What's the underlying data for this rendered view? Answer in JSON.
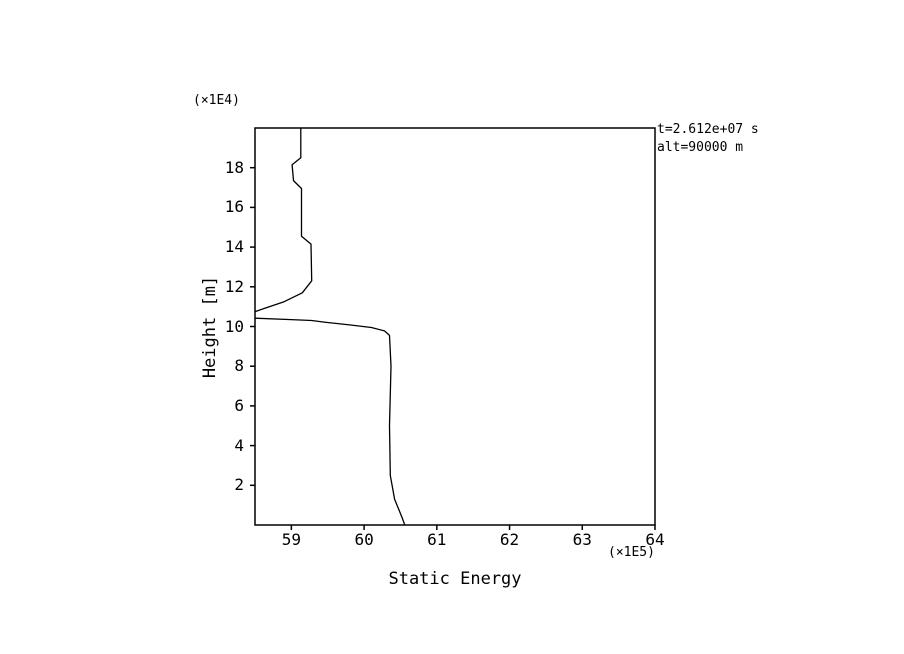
{
  "chart_data": {
    "type": "line",
    "title": "",
    "xlabel": "Static Energy",
    "ylabel": "Height [m]",
    "x_scale_label": "(×1E5)",
    "y_scale_label": "(×1E4)",
    "annotations": {
      "time": "t=2.612e+07 s",
      "altitude": "alt=90000 m"
    },
    "xlim": [
      58.5,
      64
    ],
    "ylim": [
      0,
      20
    ],
    "x_ticks": [
      59,
      60,
      61,
      62,
      63,
      64
    ],
    "y_ticks": [
      2,
      4,
      6,
      8,
      10,
      12,
      14,
      16,
      18
    ],
    "grid": false,
    "legend": "none",
    "line_color": "#000000",
    "background_color": "#ffffff",
    "series": [
      {
        "name": "static-energy-profile",
        "x_units": "x1E5",
        "y_units": "x1E4",
        "points": [
          [
            59.13,
            20.0
          ],
          [
            59.13,
            18.5
          ],
          [
            59.01,
            18.15
          ],
          [
            59.03,
            17.35
          ],
          [
            59.14,
            16.95
          ],
          [
            59.14,
            14.55
          ],
          [
            59.27,
            14.15
          ],
          [
            59.28,
            12.3
          ],
          [
            59.15,
            11.7
          ],
          [
            58.9,
            11.25
          ],
          [
            58.62,
            10.9
          ],
          [
            58.48,
            10.72
          ],
          [
            58.44,
            10.5
          ],
          [
            58.5,
            10.42
          ],
          [
            59.0,
            10.35
          ],
          [
            59.28,
            10.3
          ],
          [
            59.45,
            10.22
          ],
          [
            59.8,
            10.08
          ],
          [
            60.1,
            9.95
          ],
          [
            60.28,
            9.78
          ],
          [
            60.35,
            9.55
          ],
          [
            60.37,
            8.0
          ],
          [
            60.35,
            5.0
          ],
          [
            60.36,
            2.5
          ],
          [
            60.42,
            1.3
          ],
          [
            60.52,
            0.4
          ],
          [
            60.56,
            0.0
          ]
        ]
      }
    ]
  }
}
